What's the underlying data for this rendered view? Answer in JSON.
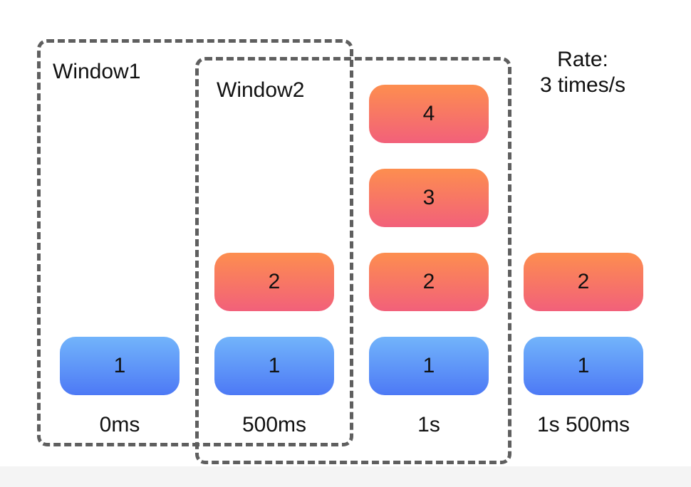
{
  "windows": {
    "window1": "Window1",
    "window2": "Window2"
  },
  "rate": {
    "line1": "Rate:",
    "line2": "3 times/s"
  },
  "columns": [
    {
      "time": "0ms",
      "requests": [
        "1"
      ]
    },
    {
      "time": "500ms",
      "requests": [
        "1",
        "2"
      ]
    },
    {
      "time": "1s",
      "requests": [
        "1",
        "2",
        "3",
        "4"
      ]
    },
    {
      "time": "1s 500ms",
      "requests": [
        "1",
        "2"
      ]
    }
  ],
  "colors": {
    "first_request": "#4d79f5",
    "later_request": "#f2607a",
    "window_border": "#5f5f5f"
  }
}
